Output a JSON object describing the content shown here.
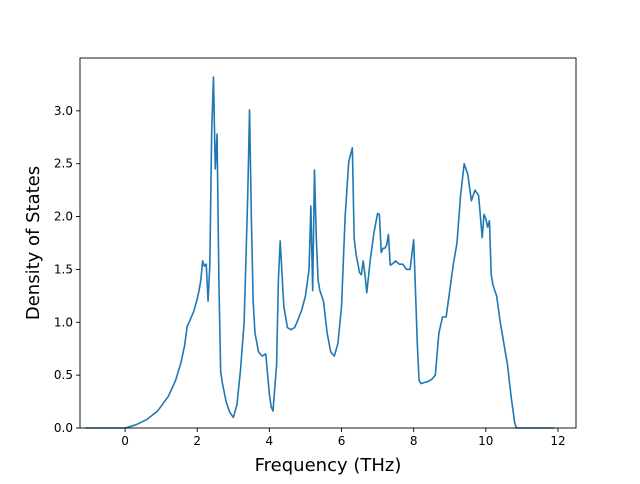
{
  "chart_data": {
    "type": "line",
    "title": "",
    "xlabel": "Frequency (THz)",
    "ylabel": "Density of States",
    "xlim": [
      -1.25,
      12.5
    ],
    "ylim": [
      0.0,
      3.5
    ],
    "xticks": [
      0,
      2,
      4,
      6,
      8,
      10,
      12
    ],
    "yticks": [
      0.0,
      0.5,
      1.0,
      1.5,
      2.0,
      2.5,
      3.0
    ],
    "xtick_labels": [
      "0",
      "2",
      "4",
      "6",
      "8",
      "10",
      "12"
    ],
    "ytick_labels": [
      "0.0",
      "0.5",
      "1.0",
      "1.5",
      "2.0",
      "2.5",
      "3.0"
    ],
    "grid": false,
    "line_color": "#1f77b4",
    "series": [
      {
        "x": [
          -1.1,
          0.0,
          0.3,
          0.6,
          0.9,
          1.2,
          1.4,
          1.55,
          1.65,
          1.72,
          1.8,
          1.9,
          2.0,
          2.05,
          2.1,
          2.15,
          2.2,
          2.25,
          2.3,
          2.35,
          2.4,
          2.45,
          2.5,
          2.55,
          2.6,
          2.65,
          2.7,
          2.8,
          2.9,
          3.0,
          3.1,
          3.2,
          3.3,
          3.4,
          3.45,
          3.5,
          3.55,
          3.6,
          3.7,
          3.8,
          3.9,
          4.0,
          4.05,
          4.1,
          4.2,
          4.25,
          4.3,
          4.4,
          4.5,
          4.6,
          4.7,
          4.8,
          4.9,
          5.0,
          5.1,
          5.15,
          5.2,
          5.25,
          5.3,
          5.35,
          5.4,
          5.5,
          5.6,
          5.7,
          5.8,
          5.9,
          6.0,
          6.1,
          6.2,
          6.3,
          6.35,
          6.4,
          6.5,
          6.55,
          6.6,
          6.65,
          6.7,
          6.8,
          6.9,
          7.0,
          7.05,
          7.1,
          7.15,
          7.2,
          7.25,
          7.3,
          7.35,
          7.4,
          7.5,
          7.6,
          7.7,
          7.8,
          7.9,
          8.0,
          8.05,
          8.1,
          8.15,
          8.2,
          8.3,
          8.4,
          8.5,
          8.6,
          8.7,
          8.8,
          8.9,
          9.0,
          9.1,
          9.2,
          9.3,
          9.4,
          9.5,
          9.6,
          9.7,
          9.8,
          9.85,
          9.9,
          9.95,
          10.0,
          10.05,
          10.1,
          10.15,
          10.2,
          10.3,
          10.4,
          10.5,
          10.6,
          10.7,
          10.8,
          10.85,
          11.0,
          11.9
        ],
        "y": [
          0.0,
          0.0,
          0.03,
          0.08,
          0.16,
          0.3,
          0.45,
          0.62,
          0.78,
          0.96,
          1.02,
          1.1,
          1.22,
          1.3,
          1.4,
          1.58,
          1.53,
          1.55,
          1.2,
          1.55,
          2.8,
          3.32,
          2.45,
          2.78,
          1.4,
          0.53,
          0.42,
          0.25,
          0.15,
          0.1,
          0.22,
          0.55,
          1.0,
          2.2,
          3.01,
          2.0,
          1.2,
          0.9,
          0.72,
          0.68,
          0.7,
          0.32,
          0.2,
          0.16,
          0.6,
          1.4,
          1.77,
          1.15,
          0.95,
          0.93,
          0.95,
          1.03,
          1.12,
          1.25,
          1.5,
          2.1,
          1.3,
          2.44,
          1.8,
          1.4,
          1.3,
          1.2,
          0.9,
          0.72,
          0.68,
          0.8,
          1.15,
          2.0,
          2.52,
          2.65,
          1.8,
          1.65,
          1.47,
          1.45,
          1.58,
          1.45,
          1.28,
          1.6,
          1.85,
          2.03,
          2.02,
          1.66,
          1.7,
          1.7,
          1.73,
          1.83,
          1.54,
          1.55,
          1.58,
          1.55,
          1.55,
          1.5,
          1.5,
          1.78,
          1.3,
          0.8,
          0.45,
          0.42,
          0.43,
          0.44,
          0.46,
          0.5,
          0.9,
          1.05,
          1.05,
          1.3,
          1.55,
          1.75,
          2.2,
          2.5,
          2.4,
          2.15,
          2.25,
          2.2,
          2.0,
          1.8,
          2.02,
          1.98,
          1.9,
          1.96,
          1.45,
          1.35,
          1.25,
          1.0,
          0.8,
          0.6,
          0.3,
          0.05,
          0.0,
          0.0,
          0.0
        ]
      }
    ]
  }
}
